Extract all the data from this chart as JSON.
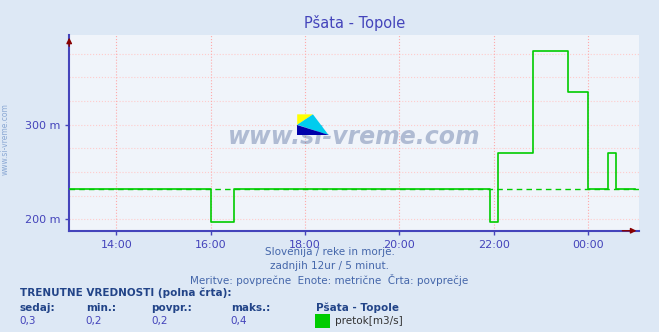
{
  "title": "Pšata - Topole",
  "bg_color": "#dde8f5",
  "plot_bg_color": "#f0f4fa",
  "line_color": "#00cc00",
  "avg_line_color": "#00cc00",
  "grid_color_v": "#ffaaaa",
  "grid_color_h": "#ffcccc",
  "axis_color": "#4444bb",
  "title_color": "#4444bb",
  "text_color": "#4466aa",
  "bold_text_color": "#224488",
  "yticks": [
    200,
    300
  ],
  "ytick_labels": [
    "200 m",
    "300 m"
  ],
  "ylim": [
    188,
    395
  ],
  "xlim_start": 0,
  "xlim_end": 145,
  "xtick_positions": [
    12,
    36,
    60,
    84,
    108,
    132
  ],
  "xtick_labels": [
    "14:00",
    "16:00",
    "18:00",
    "20:00",
    "22:00",
    "00:00"
  ],
  "subtitle1": "Slovenija / reke in morje.",
  "subtitle2": "zadnjih 12ur / 5 minut.",
  "subtitle3": "Meritve: povprečne  Enote: metrične  Črta: povprečje",
  "bottom_bold": "TRENUTNE VREDNOSTI (polna črta):",
  "legend_label": "pretok[m3/s]",
  "avg_value": 232,
  "watermark": "www.si-vreme.com",
  "data_x": [
    0,
    1,
    2,
    3,
    4,
    5,
    6,
    7,
    8,
    9,
    10,
    11,
    12,
    13,
    14,
    15,
    16,
    17,
    18,
    19,
    20,
    21,
    22,
    23,
    24,
    25,
    26,
    27,
    28,
    29,
    30,
    31,
    32,
    33,
    34,
    35,
    36,
    37,
    38,
    39,
    40,
    41,
    42,
    43,
    44,
    45,
    46,
    47,
    48,
    49,
    50,
    51,
    52,
    53,
    54,
    55,
    56,
    57,
    58,
    59,
    60,
    61,
    62,
    63,
    64,
    65,
    66,
    67,
    68,
    69,
    70,
    71,
    72,
    73,
    74,
    75,
    76,
    77,
    78,
    79,
    80,
    81,
    82,
    83,
    84,
    85,
    86,
    87,
    88,
    89,
    90,
    91,
    92,
    93,
    94,
    95,
    96,
    97,
    98,
    99,
    100,
    101,
    102,
    103,
    104,
    105,
    106,
    107,
    108,
    109,
    110,
    111,
    112,
    113,
    114,
    115,
    116,
    117,
    118,
    119,
    120,
    121,
    122,
    123,
    124,
    125,
    126,
    127,
    128,
    129,
    130,
    131,
    132,
    133,
    134,
    135,
    136,
    137,
    138,
    139,
    140,
    141,
    142,
    143,
    144
  ],
  "data_y": [
    232,
    232,
    232,
    232,
    232,
    232,
    232,
    232,
    232,
    232,
    232,
    232,
    232,
    232,
    232,
    232,
    232,
    232,
    232,
    232,
    232,
    232,
    232,
    232,
    232,
    232,
    232,
    232,
    232,
    232,
    232,
    232,
    232,
    232,
    232,
    232,
    197,
    197,
    197,
    197,
    197,
    197,
    232,
    232,
    232,
    232,
    232,
    232,
    232,
    232,
    232,
    232,
    232,
    232,
    232,
    232,
    232,
    232,
    232,
    232,
    232,
    232,
    232,
    232,
    232,
    232,
    232,
    232,
    232,
    232,
    232,
    232,
    232,
    232,
    232,
    232,
    232,
    232,
    232,
    232,
    232,
    232,
    232,
    232,
    232,
    232,
    232,
    232,
    232,
    232,
    232,
    232,
    232,
    232,
    232,
    232,
    232,
    232,
    232,
    232,
    232,
    232,
    232,
    232,
    232,
    232,
    232,
    197,
    197,
    270,
    270,
    270,
    270,
    270,
    270,
    270,
    270,
    270,
    378,
    378,
    378,
    378,
    378,
    378,
    378,
    378,
    378,
    335,
    335,
    335,
    335,
    335,
    232,
    232,
    232,
    232,
    232,
    270,
    270,
    232,
    232,
    232,
    232,
    232,
    232
  ]
}
